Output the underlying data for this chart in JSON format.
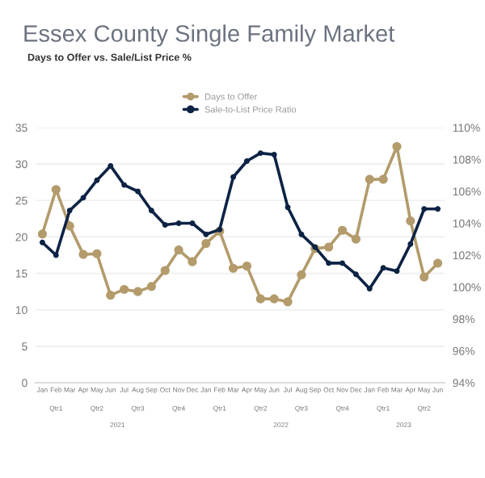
{
  "chart_data": {
    "type": "line",
    "title": "Essex County Single Family Market",
    "subtitle": "Days to Offer vs. Sale/List Price %",
    "categories": [
      "Jan",
      "Feb",
      "Mar",
      "Apr",
      "May",
      "Jun",
      "Jul",
      "Aug",
      "Sep",
      "Oct",
      "Nov",
      "Dec",
      "Jan",
      "Feb",
      "Mar",
      "Apr",
      "May",
      "Jun",
      "Jul",
      "Aug",
      "Sep",
      "Oct",
      "Nov",
      "Dec",
      "Jan",
      "Feb",
      "Mar",
      "Apr",
      "May",
      "Jun"
    ],
    "series": [
      {
        "name": "Days to Offer",
        "color": "#b39b6b",
        "values": [
          20.4,
          26.5,
          21.5,
          17.6,
          17.7,
          12.0,
          12.8,
          12.5,
          13.2,
          15.4,
          18.2,
          16.6,
          19.1,
          20.8,
          15.7,
          16.0,
          11.5,
          11.5,
          11.1,
          14.8,
          18.4,
          18.6,
          20.9,
          19.7,
          27.9,
          27.9,
          32.4,
          22.2,
          14.5,
          16.4
        ]
      },
      {
        "name": "Sale-to-List Price Ratio",
        "color": "#0d2345",
        "axis": "y2",
        "values": [
          102.8,
          102.0,
          104.8,
          105.6,
          106.7,
          107.6,
          106.4,
          106.0,
          104.8,
          103.9,
          104.0,
          104.0,
          103.3,
          103.6,
          106.9,
          107.9,
          108.4,
          108.3,
          105.0,
          103.3,
          102.5,
          101.5,
          101.5,
          100.8,
          99.9,
          101.2,
          101.0,
          102.7,
          104.9,
          104.9
        ]
      }
    ],
    "annotations": [
      "Qtr1",
      "Qtr2",
      "Qtr3",
      "Qtr4",
      "Qtr1",
      "Qtr2",
      "Qtr3",
      "Qtr4",
      "Qtr1",
      "Qtr2",
      "2021",
      "2022",
      "2023"
    ],
    "ylim": [
      0,
      35
    ],
    "yticks": [
      0,
      5,
      10,
      15,
      20,
      25,
      30,
      35
    ],
    "y2lim": [
      94,
      110
    ],
    "y2ticks": [
      {
        "value": 94,
        "label": "94%"
      },
      {
        "value": 96,
        "label": "96%"
      },
      {
        "value": 98,
        "label": "98%"
      },
      {
        "value": 100,
        "label": "100%"
      },
      {
        "value": 102,
        "label": "102%"
      },
      {
        "value": 104,
        "label": "104%"
      },
      {
        "value": 106,
        "label": "106%"
      },
      {
        "value": 108,
        "label": "108%"
      },
      {
        "value": 110,
        "label": "110%"
      }
    ],
    "grid": "y",
    "legend": "top",
    "marker": "circle",
    "line_style": "solid"
  }
}
